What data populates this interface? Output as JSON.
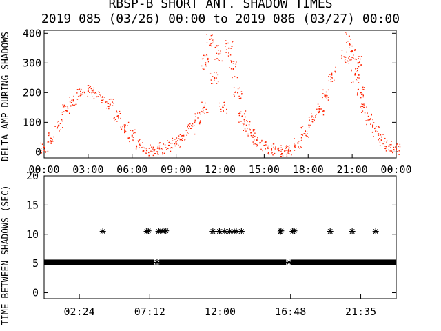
{
  "title_line1": "RBSP-B SHORT ANT. SHADOW TIMES",
  "title_line2": "2019 085 (03/26) 00:00 to 2019 086 (03/27) 00:00",
  "colors": {
    "points_top": "#ff2200",
    "points_bottom": "#000000",
    "axes": "#000000"
  },
  "chart_data": [
    {
      "type": "scatter",
      "ylabel": "DELTA AMP DURING SHADOWS",
      "xlim_hours": [
        0,
        24
      ],
      "ylim": [
        -20,
        410
      ],
      "yticks": [
        0,
        100,
        200,
        300,
        400
      ],
      "xtick_labels": [
        "00:00",
        "03:00",
        "06:00",
        "09:00",
        "12:00",
        "15:00",
        "18:00",
        "21:00",
        "00:00"
      ],
      "series": [
        {
          "marker": "dot",
          "color": "#ff2200",
          "points": [
            [
              0.0,
              15
            ],
            [
              0.5,
              45
            ],
            [
              1.0,
              90
            ],
            [
              1.5,
              140
            ],
            [
              2.0,
              175
            ],
            [
              2.5,
              195
            ],
            [
              3.0,
              205
            ],
            [
              3.5,
              200
            ],
            [
              4.0,
              185
            ],
            [
              4.5,
              160
            ],
            [
              5.0,
              120
            ],
            [
              5.5,
              85
            ],
            [
              6.0,
              55
            ],
            [
              6.5,
              25
            ],
            [
              7.0,
              5
            ],
            [
              7.5,
              5
            ],
            [
              8.0,
              12
            ],
            [
              8.5,
              22
            ],
            [
              9.0,
              35
            ],
            [
              9.5,
              55
            ],
            [
              10.0,
              80
            ],
            [
              10.5,
              115
            ],
            [
              10.9,
              150
            ],
            [
              11.0,
              300
            ],
            [
              11.3,
              380
            ],
            [
              11.6,
              250
            ],
            [
              11.9,
              330
            ],
            [
              12.2,
              150
            ],
            [
              12.6,
              350
            ],
            [
              12.9,
              280
            ],
            [
              13.2,
              200
            ],
            [
              13.5,
              120
            ],
            [
              13.8,
              90
            ],
            [
              14.1,
              65
            ],
            [
              14.5,
              40
            ],
            [
              15.0,
              22
            ],
            [
              15.5,
              10
            ],
            [
              16.0,
              5
            ],
            [
              16.4,
              3
            ],
            [
              16.8,
              5
            ],
            [
              17.3,
              30
            ],
            [
              17.8,
              70
            ],
            [
              18.3,
              110
            ],
            [
              18.8,
              145
            ],
            [
              19.2,
              190
            ],
            [
              19.6,
              260
            ],
            [
              20.5,
              320
            ],
            [
              20.8,
              390
            ],
            [
              21.0,
              340
            ],
            [
              21.2,
              260
            ],
            [
              21.4,
              300
            ],
            [
              21.6,
              200
            ],
            [
              21.8,
              150
            ],
            [
              22.2,
              110
            ],
            [
              22.6,
              70
            ],
            [
              23.0,
              40
            ],
            [
              23.5,
              20
            ],
            [
              24.0,
              10
            ]
          ]
        }
      ]
    },
    {
      "type": "scatter",
      "ylabel": "TIME BETWEEN SHADOWS (SEC)",
      "xlim_hours": [
        0,
        24
      ],
      "ylim": [
        -1,
        20
      ],
      "yticks": [
        0,
        5,
        10,
        15,
        20
      ],
      "xtick_labels": [
        "02:24",
        "07:12",
        "12:00",
        "16:48",
        "21:35"
      ],
      "xtick_hours": [
        2.4,
        7.2,
        12.0,
        16.8,
        21.583
      ],
      "series": [
        {
          "marker": "asterisk",
          "color": "#000000",
          "band": {
            "y": 5.2,
            "from": 0.0,
            "to": 24.0,
            "gaps": [
              [
                7.5,
                7.85
              ],
              [
                16.5,
                16.8
              ]
            ]
          },
          "points": [
            [
              4.0,
              10.5
            ],
            [
              7.0,
              10.5
            ],
            [
              7.1,
              10.6
            ],
            [
              7.8,
              10.5
            ],
            [
              7.95,
              10.6
            ],
            [
              8.1,
              10.5
            ],
            [
              8.3,
              10.6
            ],
            [
              11.5,
              10.5
            ],
            [
              11.95,
              10.5
            ],
            [
              12.3,
              10.5
            ],
            [
              12.65,
              10.5
            ],
            [
              12.95,
              10.5
            ],
            [
              13.1,
              10.5
            ],
            [
              13.45,
              10.5
            ],
            [
              16.1,
              10.4
            ],
            [
              16.15,
              10.6
            ],
            [
              16.95,
              10.5
            ],
            [
              17.05,
              10.6
            ],
            [
              19.5,
              10.5
            ],
            [
              21.0,
              10.5
            ],
            [
              22.6,
              10.5
            ],
            [
              7.7,
              5.2
            ],
            [
              16.7,
              5.2
            ]
          ]
        }
      ]
    }
  ]
}
